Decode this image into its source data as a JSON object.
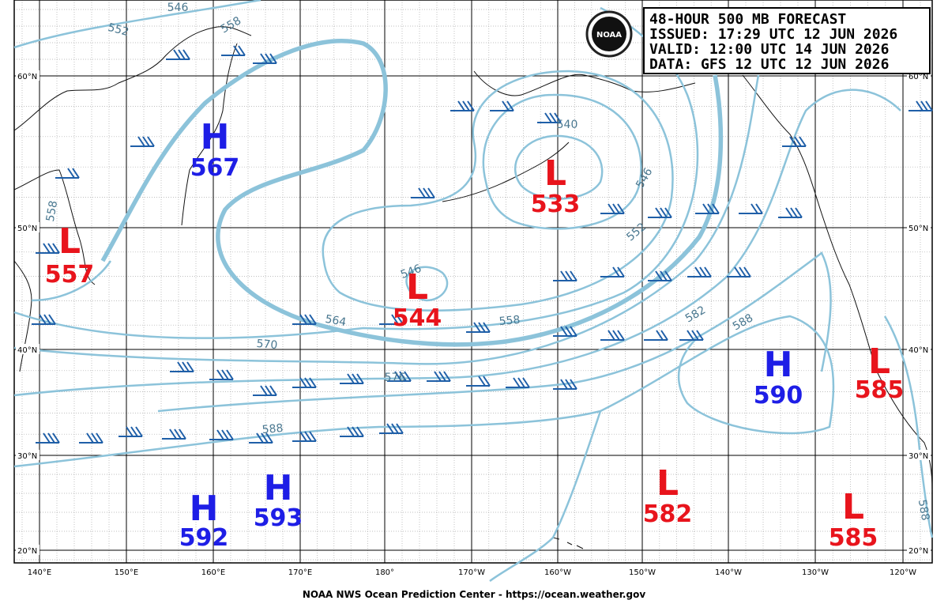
{
  "header": {
    "lines": [
      "48-HOUR 500 MB FORECAST",
      "ISSUED: 17:29 UTC 12 JUN 2026",
      "VALID:  12:00 UTC 14 JUN 2026",
      "DATA:  GFS 12 UTC 12 JUN 2026"
    ],
    "logo_text": "NOAA"
  },
  "centers": [
    {
      "letter": "H",
      "value": 567
    },
    {
      "letter": "L",
      "value": 557
    },
    {
      "letter": "L",
      "value": 544
    },
    {
      "letter": "L",
      "value": 533
    },
    {
      "letter": "H",
      "value": 590
    },
    {
      "letter": "L",
      "value": 585
    },
    {
      "letter": "H",
      "value": 592
    },
    {
      "letter": "H",
      "value": 593
    },
    {
      "letter": "L",
      "value": 582
    },
    {
      "letter": "L",
      "value": 585
    }
  ],
  "contour_labels": [
    546,
    552,
    558,
    558,
    540,
    546,
    552,
    546,
    564,
    558,
    570,
    576,
    582,
    588,
    588,
    588
  ],
  "lat_labels": [
    "60°N",
    "50°N",
    "40°N",
    "30°N",
    "20°N"
  ],
  "lon_labels": [
    "140°E",
    "150°E",
    "160°E",
    "170°E",
    "180°",
    "170°W",
    "160°W",
    "150°W",
    "140°W",
    "130°W",
    "120°W"
  ],
  "footer": "NOAA NWS Ocean Prediction Center - https://ocean.weather.gov"
}
